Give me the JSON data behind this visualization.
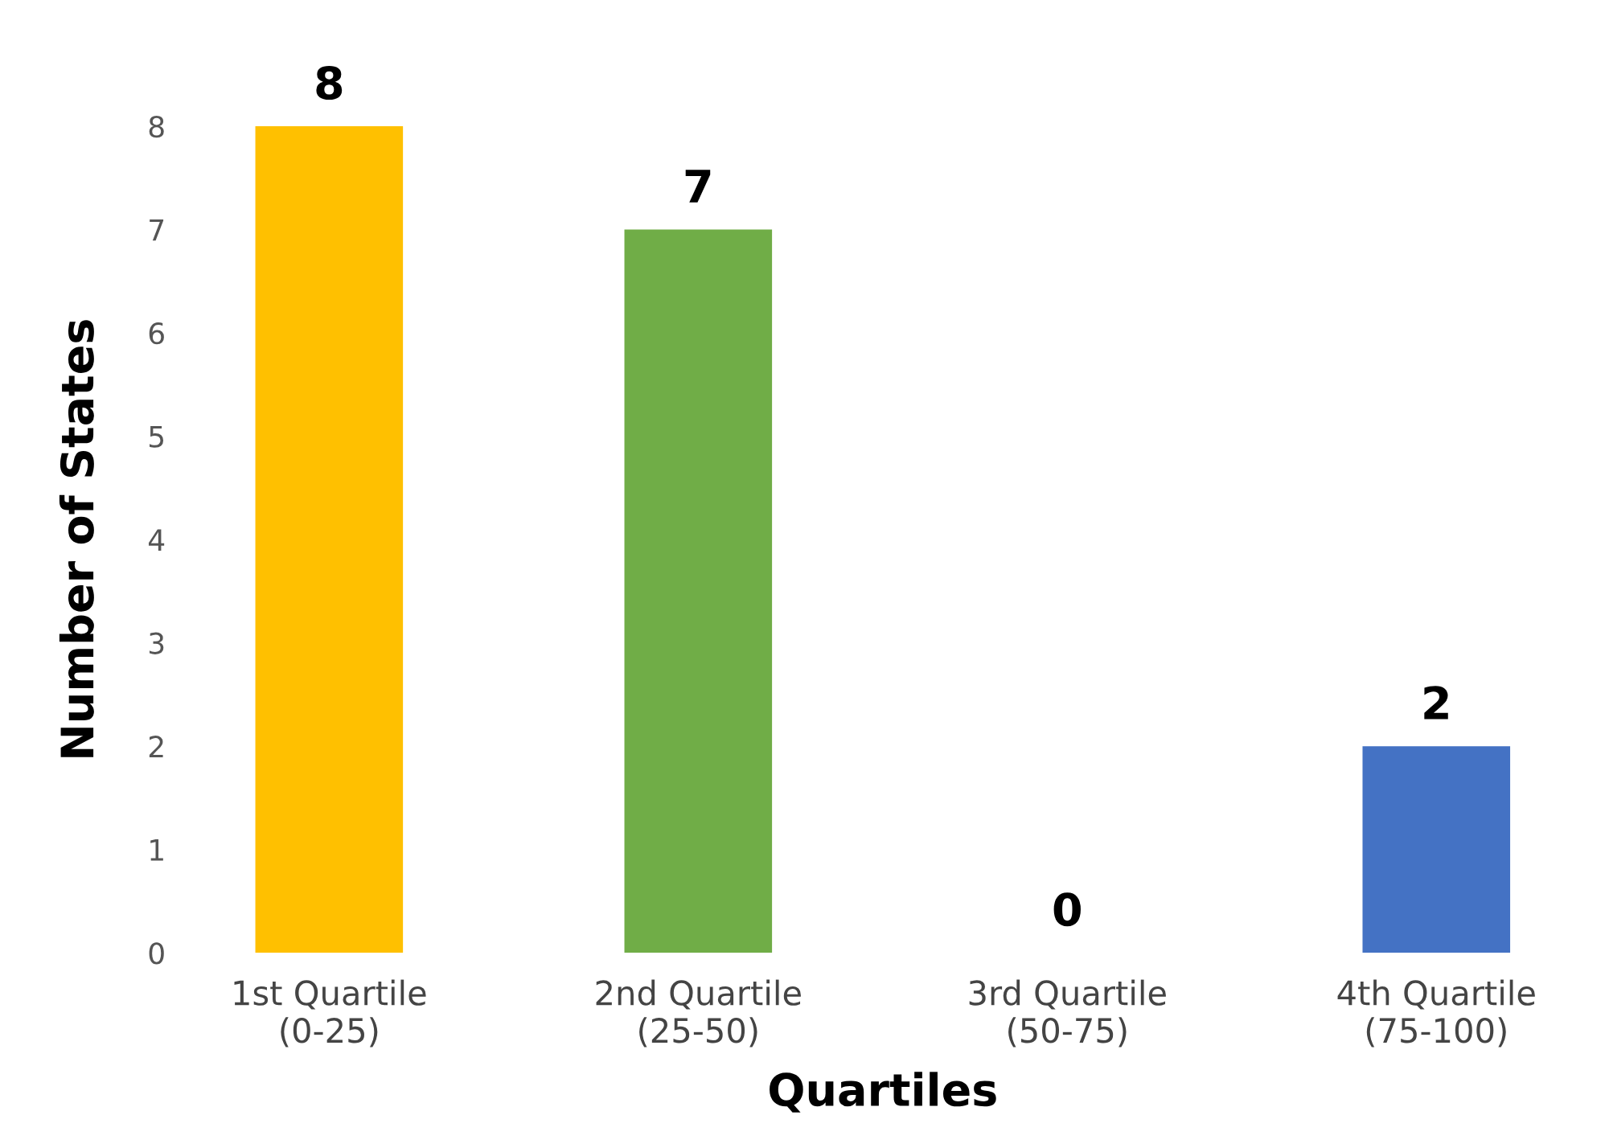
{
  "chart_data": {
    "type": "bar",
    "xlabel": "Quartiles",
    "ylabel": "Number of States",
    "categories": [
      "1st Quartile\n(0-25)",
      "2nd Quartile\n(25-50)",
      "3rd Quartile\n(50-75)",
      "4th Quartile\n(75-100)"
    ],
    "values": [
      8,
      7,
      0,
      2
    ],
    "colors": [
      "#ffc000",
      "#70ad47",
      "#c55a11",
      "#4472c4"
    ],
    "ylim": [
      0,
      8
    ],
    "yticks": [
      0,
      1,
      2,
      3,
      4,
      5,
      6,
      7,
      8
    ],
    "grid": false,
    "data_labels": true
  }
}
